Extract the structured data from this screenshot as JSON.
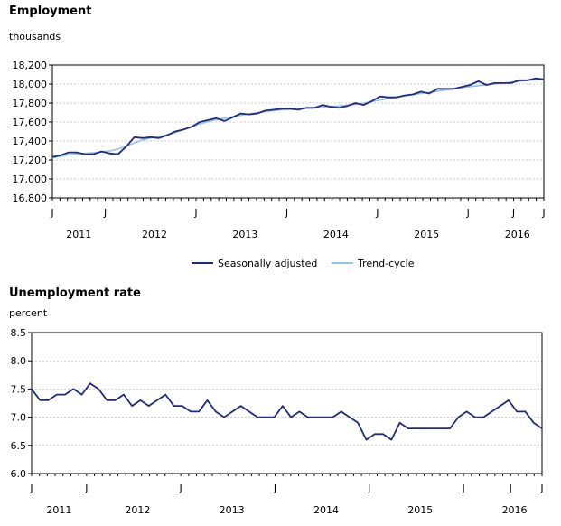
{
  "chart_data": [
    {
      "type": "line",
      "title": "Employment",
      "ylabel": "thousands",
      "ylim": [
        16800,
        18200
      ],
      "yticks": [
        "16,800",
        "17,000",
        "17,200",
        "17,400",
        "17,600",
        "17,800",
        "18,000",
        "18,200"
      ],
      "x_start": "2011-01",
      "month_labels": [
        "J",
        "J",
        "J",
        "J",
        "J",
        "J",
        "J",
        "J"
      ],
      "year_labels": [
        "2011",
        "2012",
        "2013",
        "2014",
        "2015",
        "2016"
      ],
      "grid": true,
      "legend_position": "bottom",
      "series": [
        {
          "name": "Seasonally adjusted",
          "color": "#1f2a80",
          "values": [
            17230,
            17250,
            17280,
            17280,
            17260,
            17260,
            17290,
            17270,
            17260,
            17340,
            17440,
            17430,
            17440,
            17430,
            17460,
            17500,
            17520,
            17550,
            17600,
            17620,
            17640,
            17610,
            17650,
            17690,
            17680,
            17690,
            17720,
            17730,
            17740,
            17740,
            17730,
            17750,
            17750,
            17780,
            17760,
            17750,
            17770,
            17800,
            17780,
            17820,
            17870,
            17860,
            17860,
            17880,
            17890,
            17920,
            17900,
            17950,
            17950,
            17950,
            17970,
            17990,
            18030,
            17990,
            18010,
            18010,
            18010,
            18040,
            18040,
            18060,
            18050
          ]
        },
        {
          "name": "Trend-cycle",
          "color": "#8ec5e8",
          "values": [
            17220,
            17240,
            17255,
            17265,
            17270,
            17275,
            17285,
            17295,
            17315,
            17345,
            17380,
            17410,
            17430,
            17445,
            17465,
            17490,
            17520,
            17550,
            17580,
            17605,
            17625,
            17640,
            17655,
            17670,
            17685,
            17698,
            17710,
            17720,
            17728,
            17734,
            17740,
            17746,
            17752,
            17758,
            17764,
            17770,
            17778,
            17788,
            17800,
            17815,
            17832,
            17848,
            17862,
            17875,
            17888,
            17900,
            17912,
            17925,
            17938,
            17950,
            17962,
            17973,
            17983,
            17992,
            18001,
            18010,
            18020,
            18030,
            18038,
            18045,
            18050
          ]
        }
      ]
    },
    {
      "type": "line",
      "title": "Unemployment rate",
      "ylabel": "percent",
      "ylim": [
        6.0,
        8.5
      ],
      "yticks": [
        "6.0",
        "6.5",
        "7.0",
        "7.5",
        "8.0",
        "8.5"
      ],
      "x_start": "2011-01",
      "month_labels": [
        "J",
        "J",
        "J",
        "J",
        "J",
        "J",
        "J",
        "J"
      ],
      "year_labels": [
        "2011",
        "2012",
        "2013",
        "2014",
        "2015",
        "2016"
      ],
      "grid": true,
      "series": [
        {
          "name": "Unemployment rate",
          "color": "#1f2a80",
          "values": [
            7.5,
            7.3,
            7.3,
            7.4,
            7.4,
            7.5,
            7.4,
            7.6,
            7.5,
            7.3,
            7.3,
            7.4,
            7.2,
            7.3,
            7.2,
            7.3,
            7.4,
            7.2,
            7.2,
            7.1,
            7.1,
            7.3,
            7.1,
            7.0,
            7.1,
            7.2,
            7.1,
            7.0,
            7.0,
            7.0,
            7.2,
            7.0,
            7.1,
            7.0,
            7.0,
            7.0,
            7.0,
            7.1,
            7.0,
            6.9,
            6.6,
            6.7,
            6.7,
            6.6,
            6.9,
            6.8,
            6.8,
            6.8,
            6.8,
            6.8,
            6.8,
            7.0,
            7.1,
            7.0,
            7.0,
            7.1,
            7.2,
            7.3,
            7.1,
            7.1,
            6.9,
            6.8
          ]
        }
      ]
    }
  ]
}
